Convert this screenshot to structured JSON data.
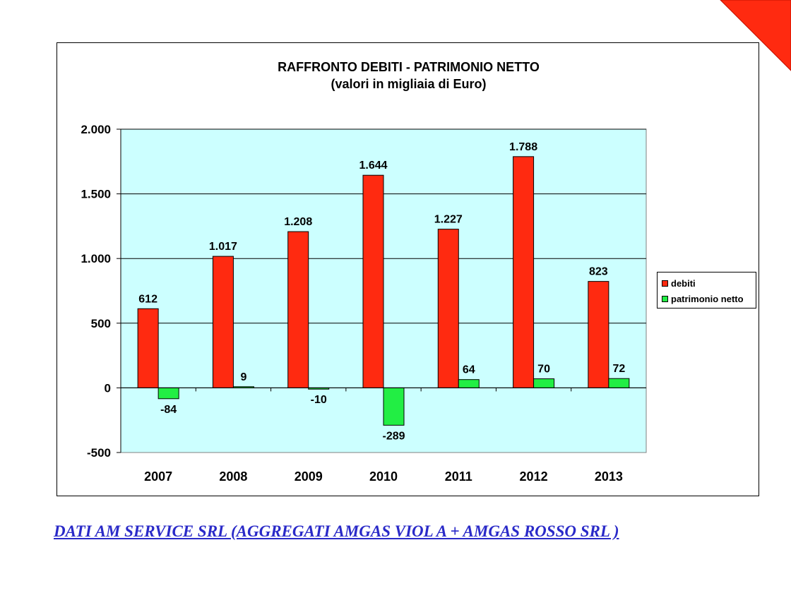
{
  "chart_data": {
    "type": "bar",
    "title": "RAFFRONTO DEBITI - PATRIMONIO NETTO",
    "subtitle": "(valori in migliaia di Euro)",
    "categories": [
      "2007",
      "2008",
      "2009",
      "2010",
      "2011",
      "2012",
      "2013"
    ],
    "series": [
      {
        "name": "debiti",
        "color": "#ff2a10",
        "values": [
          612,
          1017,
          1208,
          1644,
          1227,
          1788,
          823
        ],
        "labels": [
          "612",
          "1.017",
          "1.208",
          "1.644",
          "1.227",
          "1.788",
          "823"
        ]
      },
      {
        "name": "patrimonio netto",
        "color": "#22ee44",
        "values": [
          -84,
          9,
          -10,
          -289,
          64,
          70,
          72
        ],
        "labels": [
          "-84",
          "9",
          "-10",
          "-289",
          "64",
          "70",
          "72"
        ]
      }
    ],
    "ylim": [
      -500,
      2000
    ],
    "yticks": [
      -500,
      0,
      500,
      1000,
      1500,
      2000
    ],
    "ytick_labels": [
      "-500",
      "0",
      "500",
      "1.000",
      "1.500",
      "2.000"
    ],
    "grid": true,
    "plot_background": "#ccffff",
    "legend_position": "right"
  },
  "footer": {
    "text": "DATI AM SERVICE SRL (AGGREGATI AMGAS VIOL A + AMGAS ROSSO SRL )"
  },
  "colors": {
    "corner_accent": "#ff2a10",
    "link": "#2a2ac8"
  }
}
